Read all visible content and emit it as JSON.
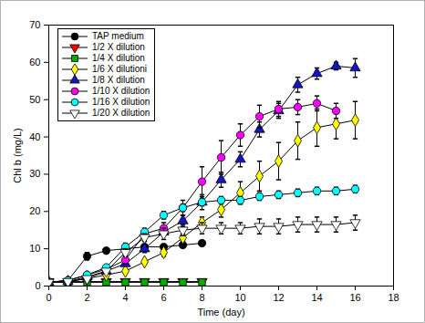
{
  "chart_data": {
    "type": "line",
    "x_label": "Time (day)",
    "y_label": "Chl b (mg/L)",
    "xlim": [
      0,
      18
    ],
    "xticks": [
      0,
      2,
      4,
      6,
      8,
      10,
      12,
      14,
      16,
      18
    ],
    "ylim": [
      0,
      70
    ],
    "yticks": [
      0,
      10,
      20,
      30,
      40,
      50,
      60,
      70
    ],
    "legend": "upper left",
    "x": [
      0,
      1,
      2,
      3,
      4,
      5,
      6,
      7,
      8,
      9,
      10,
      11,
      12,
      13,
      14,
      15,
      16
    ],
    "series": [
      {
        "name": "TAP medium",
        "color": "#000000",
        "marker": "circle",
        "values": [
          1,
          1.5,
          8,
          9.5,
          10,
          10.5,
          10.5,
          11,
          11.5,
          null,
          null,
          null,
          null,
          null,
          null,
          null,
          null
        ],
        "errors": [
          0,
          0,
          1,
          0.5,
          0.5,
          0.5,
          0.5,
          0.5,
          0.5,
          null,
          null,
          null,
          null,
          null,
          null,
          null,
          null
        ]
      },
      {
        "name": "1/2 X dilution",
        "color": "#ff0000",
        "marker": "triangle-down",
        "values": [
          1.2,
          1.2,
          1.2,
          1.2,
          1.2,
          1.2,
          1.2,
          1.2,
          1.2,
          null,
          null,
          null,
          null,
          null,
          null,
          null,
          null
        ],
        "errors": [
          0,
          0,
          0,
          0,
          0,
          0,
          0,
          0,
          0,
          null,
          null,
          null,
          null,
          null,
          null,
          null,
          null
        ]
      },
      {
        "name": "1/4 X dilution",
        "color": "#00b000",
        "marker": "square",
        "values": [
          1,
          1,
          1,
          1,
          1,
          1,
          1,
          1,
          1,
          null,
          null,
          null,
          null,
          null,
          null,
          null,
          null
        ],
        "errors": [
          0,
          0,
          0,
          0,
          0,
          0,
          0,
          0,
          0,
          null,
          null,
          null,
          null,
          null,
          null,
          null,
          null
        ]
      },
      {
        "name": "1/6 X dilutioni",
        "color": "#ffff00",
        "marker": "diamond",
        "values": [
          1,
          1.2,
          2,
          3,
          4,
          6.5,
          9,
          13,
          17,
          20.5,
          25,
          29.5,
          33.5,
          39,
          42.5,
          43.5,
          44.5
        ],
        "errors": [
          0,
          0,
          0,
          0,
          0.5,
          0.5,
          1,
          1,
          1.5,
          2,
          3,
          4,
          5,
          5,
          5,
          4,
          5
        ]
      },
      {
        "name": "1/8 X dilution",
        "color": "#1515c8",
        "marker": "triangle-up",
        "values": [
          1,
          1.2,
          2.5,
          4,
          6,
          10,
          14.5,
          17.5,
          22.5,
          28.5,
          34,
          42,
          47,
          54,
          57,
          59,
          58.5
        ],
        "errors": [
          0,
          0,
          0,
          0.5,
          0.5,
          1,
          1,
          1.5,
          2,
          2,
          2,
          2,
          2,
          2,
          1.5,
          1,
          2.5
        ]
      },
      {
        "name": "1/10 X dilution",
        "color": "#ff00ff",
        "marker": "circle",
        "values": [
          1,
          1.5,
          3,
          4.5,
          7,
          14,
          15.5,
          21,
          28,
          34.5,
          40.5,
          45.5,
          47.5,
          48,
          49,
          47,
          null
        ],
        "errors": [
          0,
          0,
          0,
          0.5,
          1,
          1,
          1.5,
          2,
          4,
          4.5,
          3,
          3,
          2,
          2,
          2,
          2,
          null
        ]
      },
      {
        "name": "1/16 X dilution",
        "color": "#00ffff",
        "marker": "circle",
        "values": [
          1,
          1.5,
          3,
          5,
          10.5,
          14.5,
          19,
          21,
          22.5,
          23,
          23,
          24,
          24.5,
          25,
          25.5,
          25.5,
          26
        ],
        "errors": [
          0,
          0,
          0,
          0.5,
          1,
          1,
          1,
          1,
          1,
          1,
          1,
          1,
          1,
          1,
          1,
          1,
          1
        ]
      },
      {
        "name": "1/20 X dilution",
        "color": "#ffffff",
        "marker": "triangle-down",
        "values": [
          1,
          1.2,
          2,
          4,
          9,
          13,
          14,
          15,
          15.5,
          15.5,
          15.5,
          16,
          16,
          16.5,
          16.5,
          16.5,
          17
        ],
        "errors": [
          0,
          0,
          0,
          0.5,
          1,
          1,
          1.5,
          1.5,
          1.5,
          1.5,
          1.5,
          2,
          2,
          2,
          2,
          2,
          2
        ]
      }
    ]
  }
}
